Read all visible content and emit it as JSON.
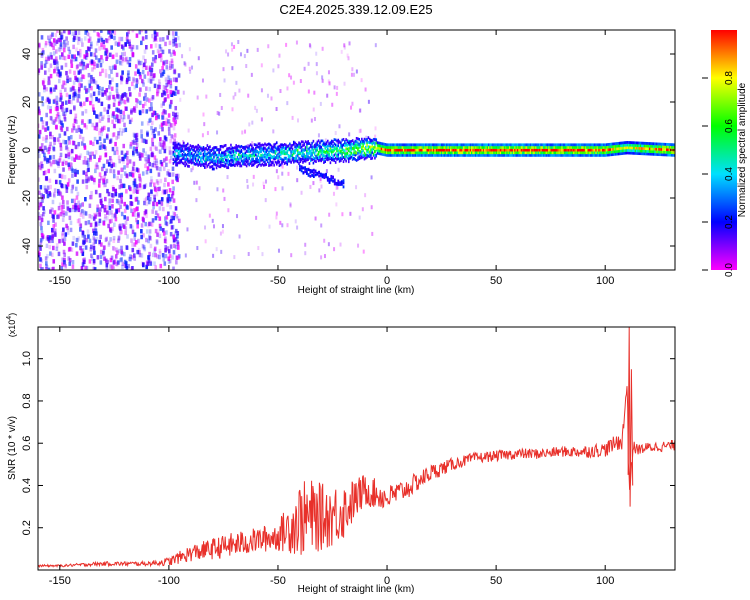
{
  "chart_data": [
    {
      "type": "heatmap",
      "title": "C2E4.2025.339.12.09.E25",
      "xlabel": "Height of straight line (km)",
      "ylabel": "Frequency (Hz)",
      "xlim": [
        -160,
        132
      ],
      "ylim": [
        -50,
        50
      ],
      "xticks": [
        -150,
        -100,
        -50,
        0,
        50,
        100
      ],
      "yticks": [
        -40,
        -20,
        0,
        20,
        40
      ],
      "grid": false,
      "colorbar": {
        "label": "Normalized spectral amplitude",
        "range": [
          0,
          1
        ],
        "ticks": [
          0.0,
          0.2,
          0.4,
          0.6,
          0.8
        ],
        "colormap": "rainbow (magenta-blue-cyan-green-yellow-red)"
      },
      "ridge": [
        {
          "x": -98,
          "y": -1,
          "amp": 0.35
        },
        {
          "x": -80,
          "y": -3,
          "amp": 0.4
        },
        {
          "x": -60,
          "y": -2,
          "amp": 0.45
        },
        {
          "x": -40,
          "y": -1,
          "amp": 0.5
        },
        {
          "x": -20,
          "y": 0,
          "amp": 0.6
        },
        {
          "x": -5,
          "y": 1,
          "amp": 0.75
        },
        {
          "x": 0,
          "y": 0,
          "amp": 0.95
        },
        {
          "x": 50,
          "y": 0,
          "amp": 1.0
        },
        {
          "x": 100,
          "y": 0,
          "amp": 0.95
        },
        {
          "x": 110,
          "y": 1,
          "amp": 0.7
        },
        {
          "x": 132,
          "y": 0,
          "amp": 1.0
        }
      ],
      "side_branch": [
        {
          "x": -40,
          "y": -8
        },
        {
          "x": -30,
          "y": -11
        },
        {
          "x": -20,
          "y": -14
        }
      ],
      "noise_region": {
        "x": [
          -160,
          -95
        ],
        "y": [
          -50,
          50
        ],
        "amp_max": 0.25
      }
    },
    {
      "type": "line",
      "xlabel": "Height of straight line (km)",
      "ylabel": "SNR (10 * v/v)",
      "y_multiplier": "(x10^4)",
      "xlim": [
        -160,
        132
      ],
      "ylim": [
        0,
        1.15
      ],
      "xticks": [
        -150,
        -100,
        -50,
        0,
        50,
        100
      ],
      "yticks": [
        0.2,
        0.4,
        0.6,
        0.8,
        1.0
      ],
      "grid": false,
      "color": "#e8302a",
      "x": [
        -160,
        -150,
        -130,
        -110,
        -100,
        -90,
        -80,
        -70,
        -60,
        -50,
        -45,
        -40,
        -35,
        -30,
        -25,
        -20,
        -15,
        -10,
        -5,
        0,
        10,
        20,
        30,
        40,
        50,
        60,
        70,
        80,
        90,
        100,
        105,
        108,
        110,
        111,
        112,
        113,
        115,
        120,
        132
      ],
      "y": [
        0.02,
        0.02,
        0.03,
        0.03,
        0.04,
        0.08,
        0.1,
        0.12,
        0.14,
        0.16,
        0.2,
        0.24,
        0.25,
        0.25,
        0.26,
        0.28,
        0.33,
        0.38,
        0.36,
        0.34,
        0.39,
        0.46,
        0.5,
        0.53,
        0.54,
        0.55,
        0.55,
        0.56,
        0.56,
        0.57,
        0.6,
        0.62,
        0.9,
        0.35,
        0.5,
        0.58,
        0.57,
        0.58,
        0.59
      ],
      "jitter": [
        0.005,
        0.005,
        0.01,
        0.01,
        0.02,
        0.04,
        0.05,
        0.06,
        0.06,
        0.07,
        0.12,
        0.18,
        0.18,
        0.16,
        0.15,
        0.14,
        0.1,
        0.08,
        0.07,
        0.06,
        0.05,
        0.04,
        0.03,
        0.025,
        0.025,
        0.025,
        0.025,
        0.025,
        0.03,
        0.035,
        0.04,
        0.05,
        0.1,
        0.05,
        0.04,
        0.03,
        0.025,
        0.025,
        0.025
      ]
    }
  ]
}
